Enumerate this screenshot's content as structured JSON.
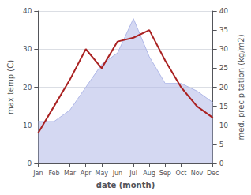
{
  "chart_data": {
    "type": "line",
    "xlabel": "date (month)",
    "ylabel": "max temp (C)",
    "y2label": "med. precipitation (kg/m2)",
    "categories": [
      "Jan",
      "Feb",
      "Mar",
      "Apr",
      "May",
      "Jun",
      "Jul",
      "Aug",
      "Sep",
      "Oct",
      "Nov",
      "Dec"
    ],
    "series": [
      {
        "type": "line",
        "color": "#aa2222",
        "values": [
          8,
          15,
          22,
          30,
          25,
          32,
          33,
          35,
          27,
          20,
          15,
          12
        ]
      },
      {
        "type": "area",
        "color": "#b0b8e8",
        "axis": "y2",
        "values": [
          11,
          11,
          14,
          20,
          26,
          29,
          38,
          28,
          21,
          21,
          19,
          16
        ]
      }
    ],
    "ylim": [
      0,
      40
    ],
    "yticks": [
      0,
      10,
      20,
      30,
      40
    ],
    "y2lim": [
      0,
      40
    ],
    "y2ticks": [
      0,
      5,
      10,
      15,
      20,
      25,
      30,
      35,
      40
    ],
    "grid": true
  }
}
